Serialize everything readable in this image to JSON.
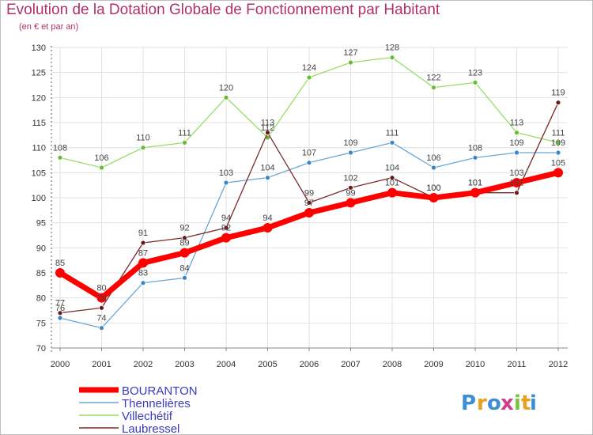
{
  "title": "Evolution de la Dotation Globale de Fonctionnement par Habitant",
  "subtitle": "(en € et par an)",
  "logo": {
    "letters": [
      "P",
      "r",
      "o",
      "x",
      "i",
      "t",
      "i"
    ],
    "colors": [
      "#3c8fd4",
      "#e8a020",
      "#3c8fd4",
      "#d23c8c",
      "#7cc23c",
      "#e8a020",
      "#3c8fd4"
    ]
  },
  "chart_data": {
    "type": "line",
    "title": "Evolution de la Dotation Globale de Fonctionnement par Habitant",
    "subtitle": "(en € et par an)",
    "xlabel": "",
    "ylabel": "",
    "ylim": [
      70,
      130
    ],
    "yticks": [
      70,
      75,
      80,
      85,
      90,
      95,
      100,
      105,
      110,
      115,
      120,
      125,
      130
    ],
    "x": [
      "2000",
      "2001",
      "2002",
      "2003",
      "2004",
      "2005",
      "2006",
      "2007",
      "2008",
      "2009",
      "2010",
      "2011",
      "2012"
    ],
    "legend_position": "bottom-left",
    "series": [
      {
        "name": "Villechétif",
        "color": "#99dd66",
        "marker": "#66bb33",
        "values": [
          108,
          106,
          110,
          111,
          120,
          112,
          124,
          127,
          128,
          122,
          123,
          113,
          111
        ]
      },
      {
        "name": "Thennelières",
        "color": "#6aa6d6",
        "marker": "#3a86c6",
        "values": [
          76,
          74,
          83,
          84,
          103,
          104,
          107,
          109,
          111,
          106,
          108,
          109,
          109
        ]
      },
      {
        "name": "Laubressel",
        "color": "#7a2a2a",
        "marker": "#6a1a1a",
        "values": [
          77,
          78,
          91,
          92,
          94,
          113,
          99,
          102,
          104,
          100,
          101,
          101,
          119
        ]
      },
      {
        "name": "BOURANTON",
        "color": "#ff0000",
        "marker": "#ff0000",
        "values": [
          85,
          80,
          87,
          89,
          92,
          94,
          97,
          99,
          101,
          100,
          101,
          103,
          105
        ]
      }
    ],
    "legend_order": [
      "BOURANTON",
      "Thennelières",
      "Villechétif",
      "Laubressel"
    ]
  }
}
